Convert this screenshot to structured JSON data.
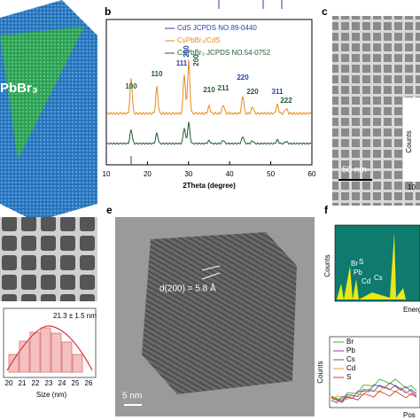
{
  "panels": {
    "a": {
      "label": "PbBr₃"
    },
    "b": {
      "letter": "b",
      "legend": [
        "CdS JCPDS NO.89-0440",
        "CsPbBr₃/CdS",
        "CsPbBr₃ JCPDS NO.54-0752"
      ],
      "xlabel": "2Theta (degree)",
      "xticks": [
        "10",
        "20",
        "30",
        "40",
        "50",
        "60"
      ],
      "peaks": [
        {
          "text": "100",
          "color": "green"
        },
        {
          "text": "110",
          "color": "green"
        },
        {
          "text": "111",
          "color": "blue"
        },
        {
          "text": "200",
          "color": "blue"
        },
        {
          "text": "200",
          "color": "green"
        },
        {
          "text": "210",
          "color": "green"
        },
        {
          "text": "211",
          "color": "green"
        },
        {
          "text": "220",
          "color": "blue"
        },
        {
          "text": "220",
          "color": "green"
        },
        {
          "text": "311",
          "color": "blue"
        },
        {
          "text": "222",
          "color": "green"
        }
      ]
    },
    "c": {
      "letter": "c",
      "scale": "50 nm",
      "inset_ylabel": "Counts",
      "inset_xtick": "10"
    },
    "d": {
      "annotation": "21.3 ± 1.5 nm",
      "xticks": [
        "20",
        "21",
        "22",
        "23",
        "24",
        "25",
        "26"
      ],
      "xlabel": "Size (nm)"
    },
    "e": {
      "letter": "e",
      "annotation": "d(200) = 5.8 Å",
      "scale": "5 nm"
    },
    "f": {
      "letter": "f",
      "eds_ylabel": "Counts",
      "eds_peaks": [
        "Br",
        "S",
        "Pb",
        "Cd",
        "Cs"
      ],
      "eds_xlabel": "Energ",
      "scan_legend": [
        "Br",
        "Pb",
        "Cs",
        "Cd",
        "S"
      ],
      "scan_ylabel": "Counts",
      "scan_xlabel": "Pos"
    }
  }
}
